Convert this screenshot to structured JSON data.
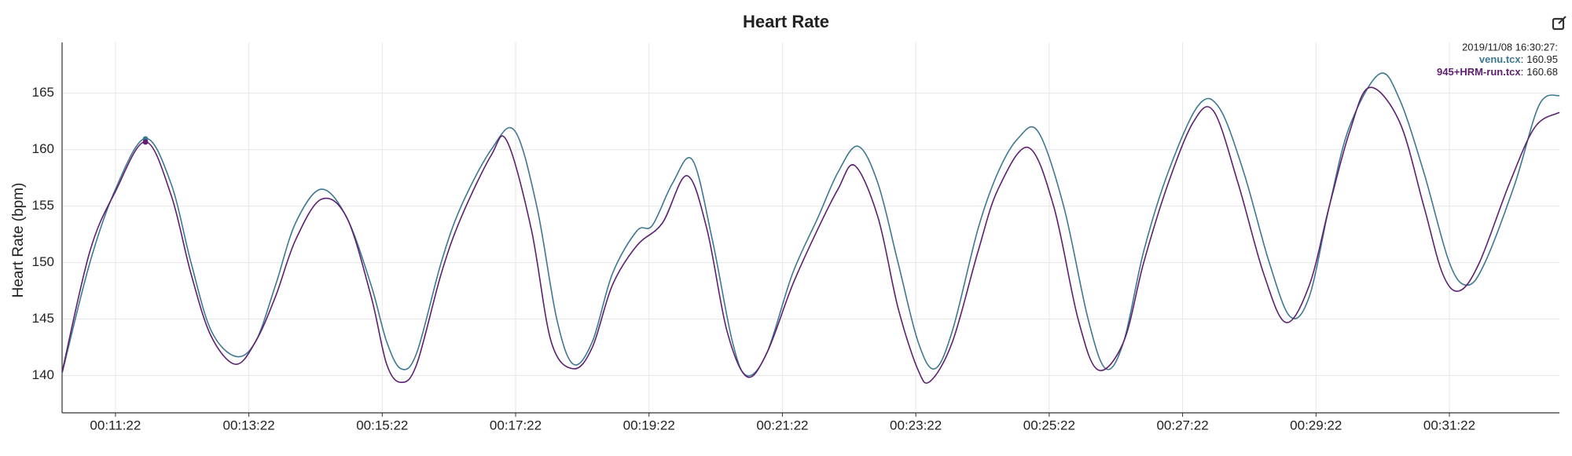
{
  "chart_data": {
    "type": "line",
    "title": "Heart Rate",
    "y_label": "Heart Rate (bpm)",
    "xlim": [
      634,
      1981
    ],
    "ylim": [
      136.7,
      169.5
    ],
    "xticks": [
      {
        "value": 682,
        "label": "00:11:22"
      },
      {
        "value": 802,
        "label": "00:13:22"
      },
      {
        "value": 922,
        "label": "00:15:22"
      },
      {
        "value": 1042,
        "label": "00:17:22"
      },
      {
        "value": 1162,
        "label": "00:19:22"
      },
      {
        "value": 1282,
        "label": "00:21:22"
      },
      {
        "value": 1402,
        "label": "00:23:22"
      },
      {
        "value": 1522,
        "label": "00:25:22"
      },
      {
        "value": 1642,
        "label": "00:27:22"
      },
      {
        "value": 1762,
        "label": "00:29:22"
      },
      {
        "value": 1882,
        "label": "00:31:22"
      }
    ],
    "yticks": [
      140,
      145,
      150,
      155,
      160,
      165
    ],
    "grid": true,
    "series": [
      {
        "name": "venu.tcx",
        "color": "#3d7891",
        "x": [
          634,
          659,
          682,
          709,
          732,
          750,
          768,
          790,
          808,
          826,
          844,
          867,
          890,
          912,
          926,
          939,
          953,
          975,
          993,
          1020,
          1041,
          1061,
          1079,
          1094,
          1111,
          1129,
          1151,
          1165,
          1183,
          1201,
          1219,
          1237,
          1250,
          1268,
          1291,
          1314,
          1332,
          1350,
          1368,
          1386,
          1404,
          1419,
          1435,
          1458,
          1476,
          1494,
          1512,
          1535,
          1557,
          1573,
          1589,
          1607,
          1629,
          1656,
          1675,
          1697,
          1720,
          1739,
          1756,
          1774,
          1792,
          1819,
          1837,
          1859,
          1882,
          1898,
          1914,
          1941,
          1963,
          1981
        ],
        "values": [
          140.2,
          150,
          156.5,
          161,
          157,
          150,
          144,
          141.7,
          143,
          148,
          153.5,
          156.5,
          154,
          148,
          143,
          140.6,
          142,
          150,
          155,
          160,
          161.7,
          155,
          145,
          141,
          143,
          149,
          152.8,
          153.3,
          157,
          159.1,
          152,
          143,
          140,
          142,
          149,
          154,
          158,
          160.3,
          157,
          150,
          143,
          140.6,
          144,
          153,
          158,
          161,
          161.6,
          155,
          145,
          140.6,
          143,
          151,
          158,
          163.9,
          163.7,
          158,
          150,
          145.2,
          147,
          155,
          162,
          166.7,
          164.5,
          158,
          150,
          148,
          150,
          157,
          164,
          164.8
        ]
      },
      {
        "name": "945+HRM-run.tcx",
        "color": "#5e1f73",
        "x": [
          634,
          659,
          682,
          709,
          732,
          750,
          768,
          790,
          808,
          826,
          844,
          867,
          890,
          912,
          926,
          939,
          953,
          975,
          993,
          1020,
          1034,
          1056,
          1074,
          1094,
          1111,
          1129,
          1151,
          1174,
          1196,
          1214,
          1232,
          1250,
          1268,
          1291,
          1314,
          1332,
          1347,
          1368,
          1386,
          1404,
          1415,
          1435,
          1458,
          1476,
          1503,
          1526,
          1548,
          1566,
          1589,
          1607,
          1629,
          1652,
          1670,
          1692,
          1715,
          1735,
          1756,
          1774,
          1792,
          1810,
          1837,
          1859,
          1876,
          1891,
          1909,
          1936,
          1959,
          1981
        ],
        "values": [
          140.3,
          151,
          156.3,
          160.7,
          156,
          149,
          143.5,
          141,
          143,
          147,
          152,
          155.6,
          154,
          147,
          141,
          139.4,
          141,
          149,
          154,
          159.5,
          160.8,
          153,
          143,
          140.6,
          142.5,
          148,
          151.5,
          153.5,
          157.7,
          153,
          144,
          139.9,
          142,
          148,
          153,
          156.5,
          158.6,
          154,
          146,
          140.5,
          139.5,
          143,
          151,
          156.5,
          160.2,
          155,
          145,
          140.5,
          143,
          150,
          157,
          162.5,
          163.4,
          157,
          149,
          144.7,
          148,
          155,
          161.5,
          165.5,
          162.5,
          155,
          149,
          147.5,
          150,
          157,
          162,
          163.3
        ]
      }
    ],
    "tooltip": {
      "time": "2019/11/08 16:30:27:",
      "x": 709,
      "separator": ":",
      "values": [
        160.95,
        160.68
      ]
    }
  }
}
